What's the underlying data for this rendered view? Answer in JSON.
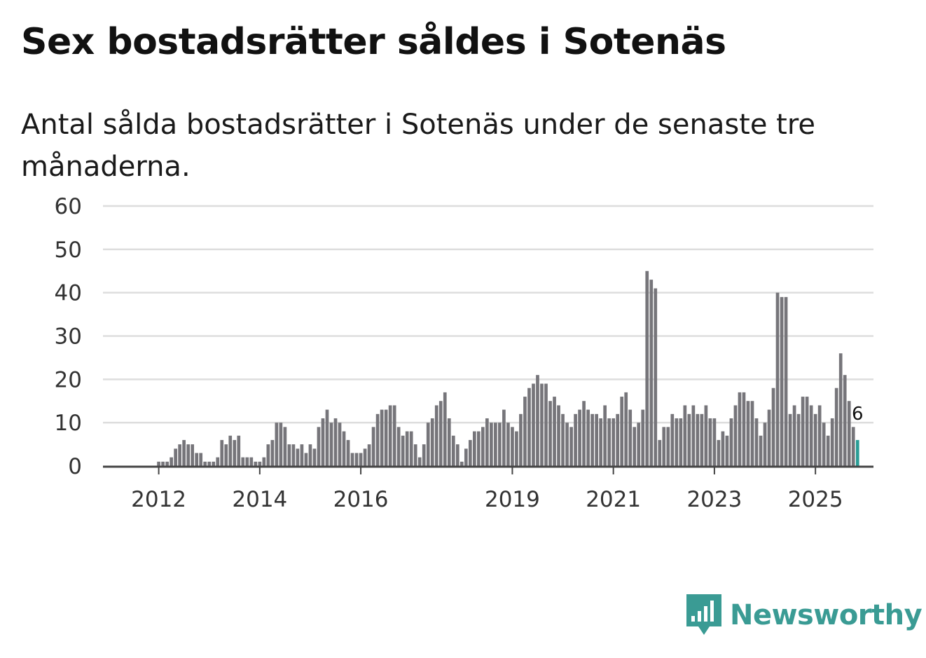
{
  "header": {
    "title": "Sex bostadsrätter såldes i Sotenäs",
    "subtitle": "Antal sålda bostadsrätter i Sotenäs under de senaste tre månaderna."
  },
  "colors": {
    "bar": "#76757a",
    "highlight": "#2a9d96",
    "grid": "#dddddd",
    "axis": "#444444",
    "brand": "#3a9b94"
  },
  "chart_data": {
    "type": "bar",
    "title": "Sex bostadsrätter såldes i Sotenäs",
    "xlabel": "",
    "ylabel": "",
    "ylim": [
      0,
      60
    ],
    "yticks": [
      0,
      10,
      20,
      30,
      40,
      50,
      60
    ],
    "start": "2011-04",
    "xtick_labels": [
      {
        "label": "2012",
        "index": 9
      },
      {
        "label": "2014",
        "index": 33
      },
      {
        "label": "2016",
        "index": 57
      },
      {
        "label": "2019",
        "index": 93
      },
      {
        "label": "2021",
        "index": 117
      },
      {
        "label": "2023",
        "index": 141
      },
      {
        "label": "2025",
        "index": 165
      }
    ],
    "values": [
      0,
      0,
      0,
      0,
      0,
      0,
      0,
      0,
      0,
      1,
      1,
      1,
      2,
      4,
      5,
      6,
      5,
      5,
      3,
      3,
      1,
      1,
      1,
      2,
      6,
      5,
      7,
      6,
      7,
      2,
      2,
      2,
      1,
      1,
      2,
      5,
      6,
      10,
      10,
      9,
      5,
      5,
      4,
      5,
      3,
      5,
      4,
      9,
      11,
      13,
      10,
      11,
      10,
      8,
      6,
      3,
      3,
      3,
      4,
      5,
      9,
      12,
      13,
      13,
      14,
      14,
      9,
      7,
      8,
      8,
      5,
      2,
      5,
      10,
      11,
      14,
      15,
      17,
      11,
      7,
      5,
      1,
      4,
      6,
      8,
      8,
      9,
      11,
      10,
      10,
      10,
      13,
      10,
      9,
      8,
      12,
      16,
      18,
      19,
      21,
      19,
      19,
      15,
      16,
      14,
      12,
      10,
      9,
      12,
      13,
      15,
      13,
      12,
      12,
      11,
      14,
      11,
      11,
      12,
      16,
      17,
      13,
      9,
      10,
      13,
      45,
      43,
      41,
      6,
      9,
      9,
      12,
      11,
      11,
      14,
      12,
      14,
      12,
      12,
      14,
      11,
      11,
      6,
      8,
      7,
      11,
      14,
      17,
      17,
      15,
      15,
      11,
      7,
      10,
      13,
      18,
      40,
      39,
      39,
      12,
      14,
      12,
      16,
      16,
      14,
      12,
      14,
      10,
      7,
      11,
      18,
      26,
      21,
      15,
      9,
      6
    ],
    "highlight_last": true,
    "last_value_label": "6"
  },
  "brand": {
    "name": "Newsworthy",
    "icon": "newsworthy-logo-icon"
  }
}
